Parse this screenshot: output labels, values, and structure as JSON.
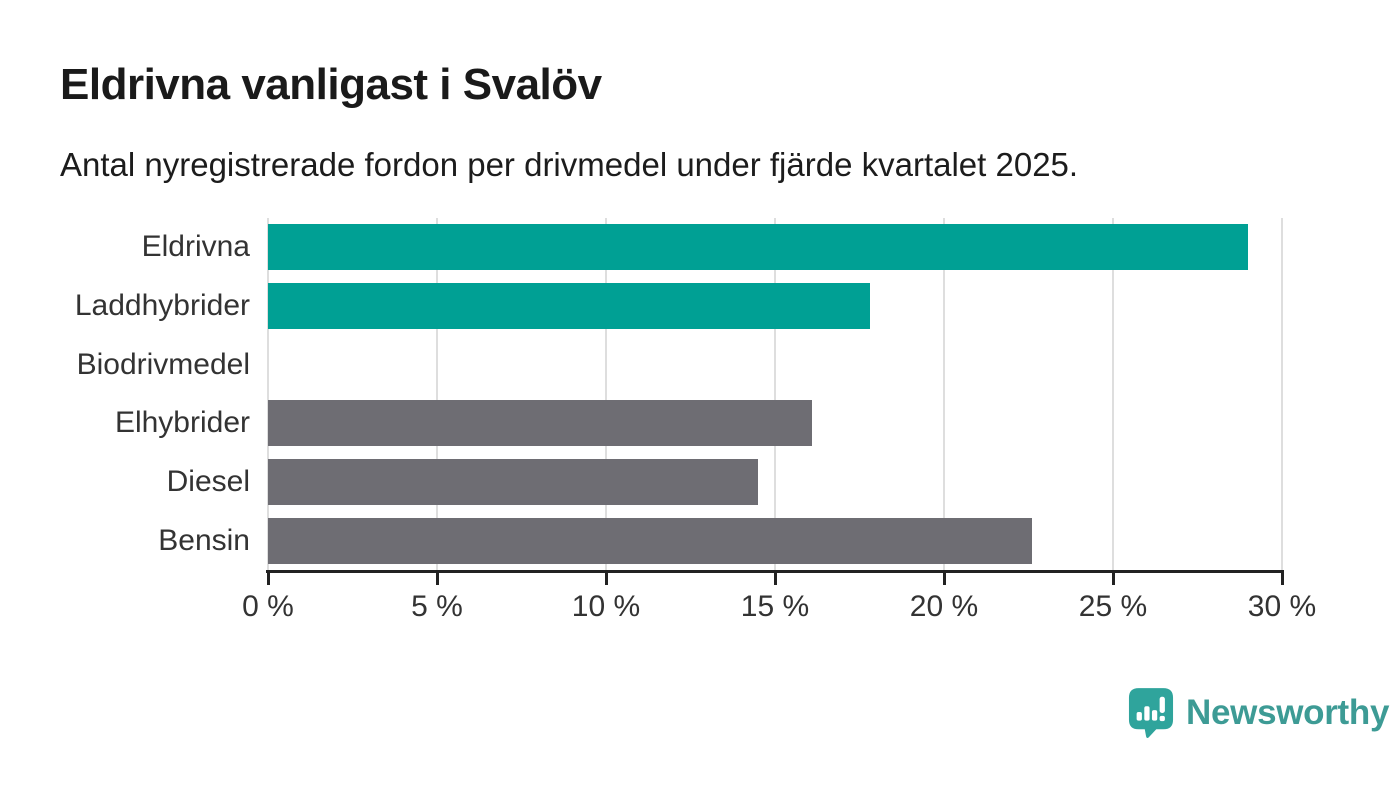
{
  "header": {
    "title": "Eldrivna vanligast i Svalöv",
    "subtitle": "Antal nyregistrerade fordon per drivmedel under fjärde kvartalet 2025."
  },
  "chart_data": {
    "type": "bar",
    "orientation": "horizontal",
    "title": "Eldrivna vanligast i Svalöv",
    "subtitle": "Antal nyregistrerade fordon per drivmedel under fjärde kvartalet 2025.",
    "categories": [
      "Eldrivna",
      "Laddhybrider",
      "Biodrivmedel",
      "Elhybrider",
      "Diesel",
      "Bensin"
    ],
    "values": [
      29.0,
      17.8,
      0,
      16.1,
      14.5,
      22.6
    ],
    "unit": "%",
    "xlim": [
      0,
      30
    ],
    "x_ticks": [
      0,
      5,
      10,
      15,
      20,
      25,
      30
    ],
    "x_tick_labels": [
      "0 %",
      "5 %",
      "10 %",
      "15 %",
      "20 %",
      "25 %",
      "30 %"
    ],
    "bar_colors": [
      "#00a094",
      "#00a094",
      "#6e6d73",
      "#6e6d73",
      "#6e6d73",
      "#6e6d73"
    ],
    "highlight_color": "#00a094",
    "default_color": "#6e6d73",
    "grid": "vertical",
    "gridline_color": "#dedede",
    "axis_color": "#222222",
    "legend": "none"
  },
  "footer": {
    "brand": "Newsworthy",
    "brand_color": "#3d9b95",
    "icon_color": "#2fa49c"
  }
}
